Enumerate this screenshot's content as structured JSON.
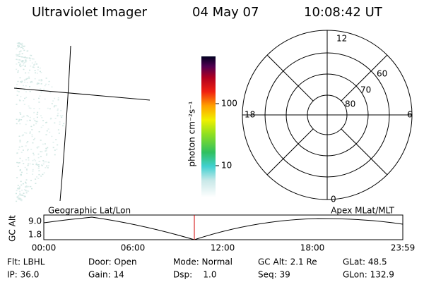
{
  "header": {
    "title": "Ultraviolet Imager",
    "date": "04 May 07",
    "time": "10:08:42 UT"
  },
  "colorbar": {
    "label": "photon cm⁻²s⁻¹",
    "ticks": [
      "100",
      "10"
    ]
  },
  "polar": {
    "mlt_labels": [
      "12",
      "18",
      "6",
      "0"
    ],
    "lat_labels": [
      "60",
      "70",
      "80"
    ]
  },
  "orbit": {
    "left_title": "Geographic Lat/Lon",
    "right_title": "Apex MLat/MLT",
    "axis_label": "GC Alt",
    "y_labels": [
      "9.0",
      "1.8"
    ],
    "x_labels": [
      "00:00",
      "06:00",
      "12:00",
      "18:00",
      "23:59"
    ]
  },
  "footer": {
    "rows": [
      [
        "Flt: LBHL",
        "Door: Open",
        "Mode: Normal",
        "GC Alt: 2.1 Re",
        "GLat: 48.5"
      ],
      [
        "IP: 36.0",
        "Gain: 14",
        "Dsp:    1.0",
        "Seq: 39",
        "GLon: 132.9"
      ]
    ]
  }
}
